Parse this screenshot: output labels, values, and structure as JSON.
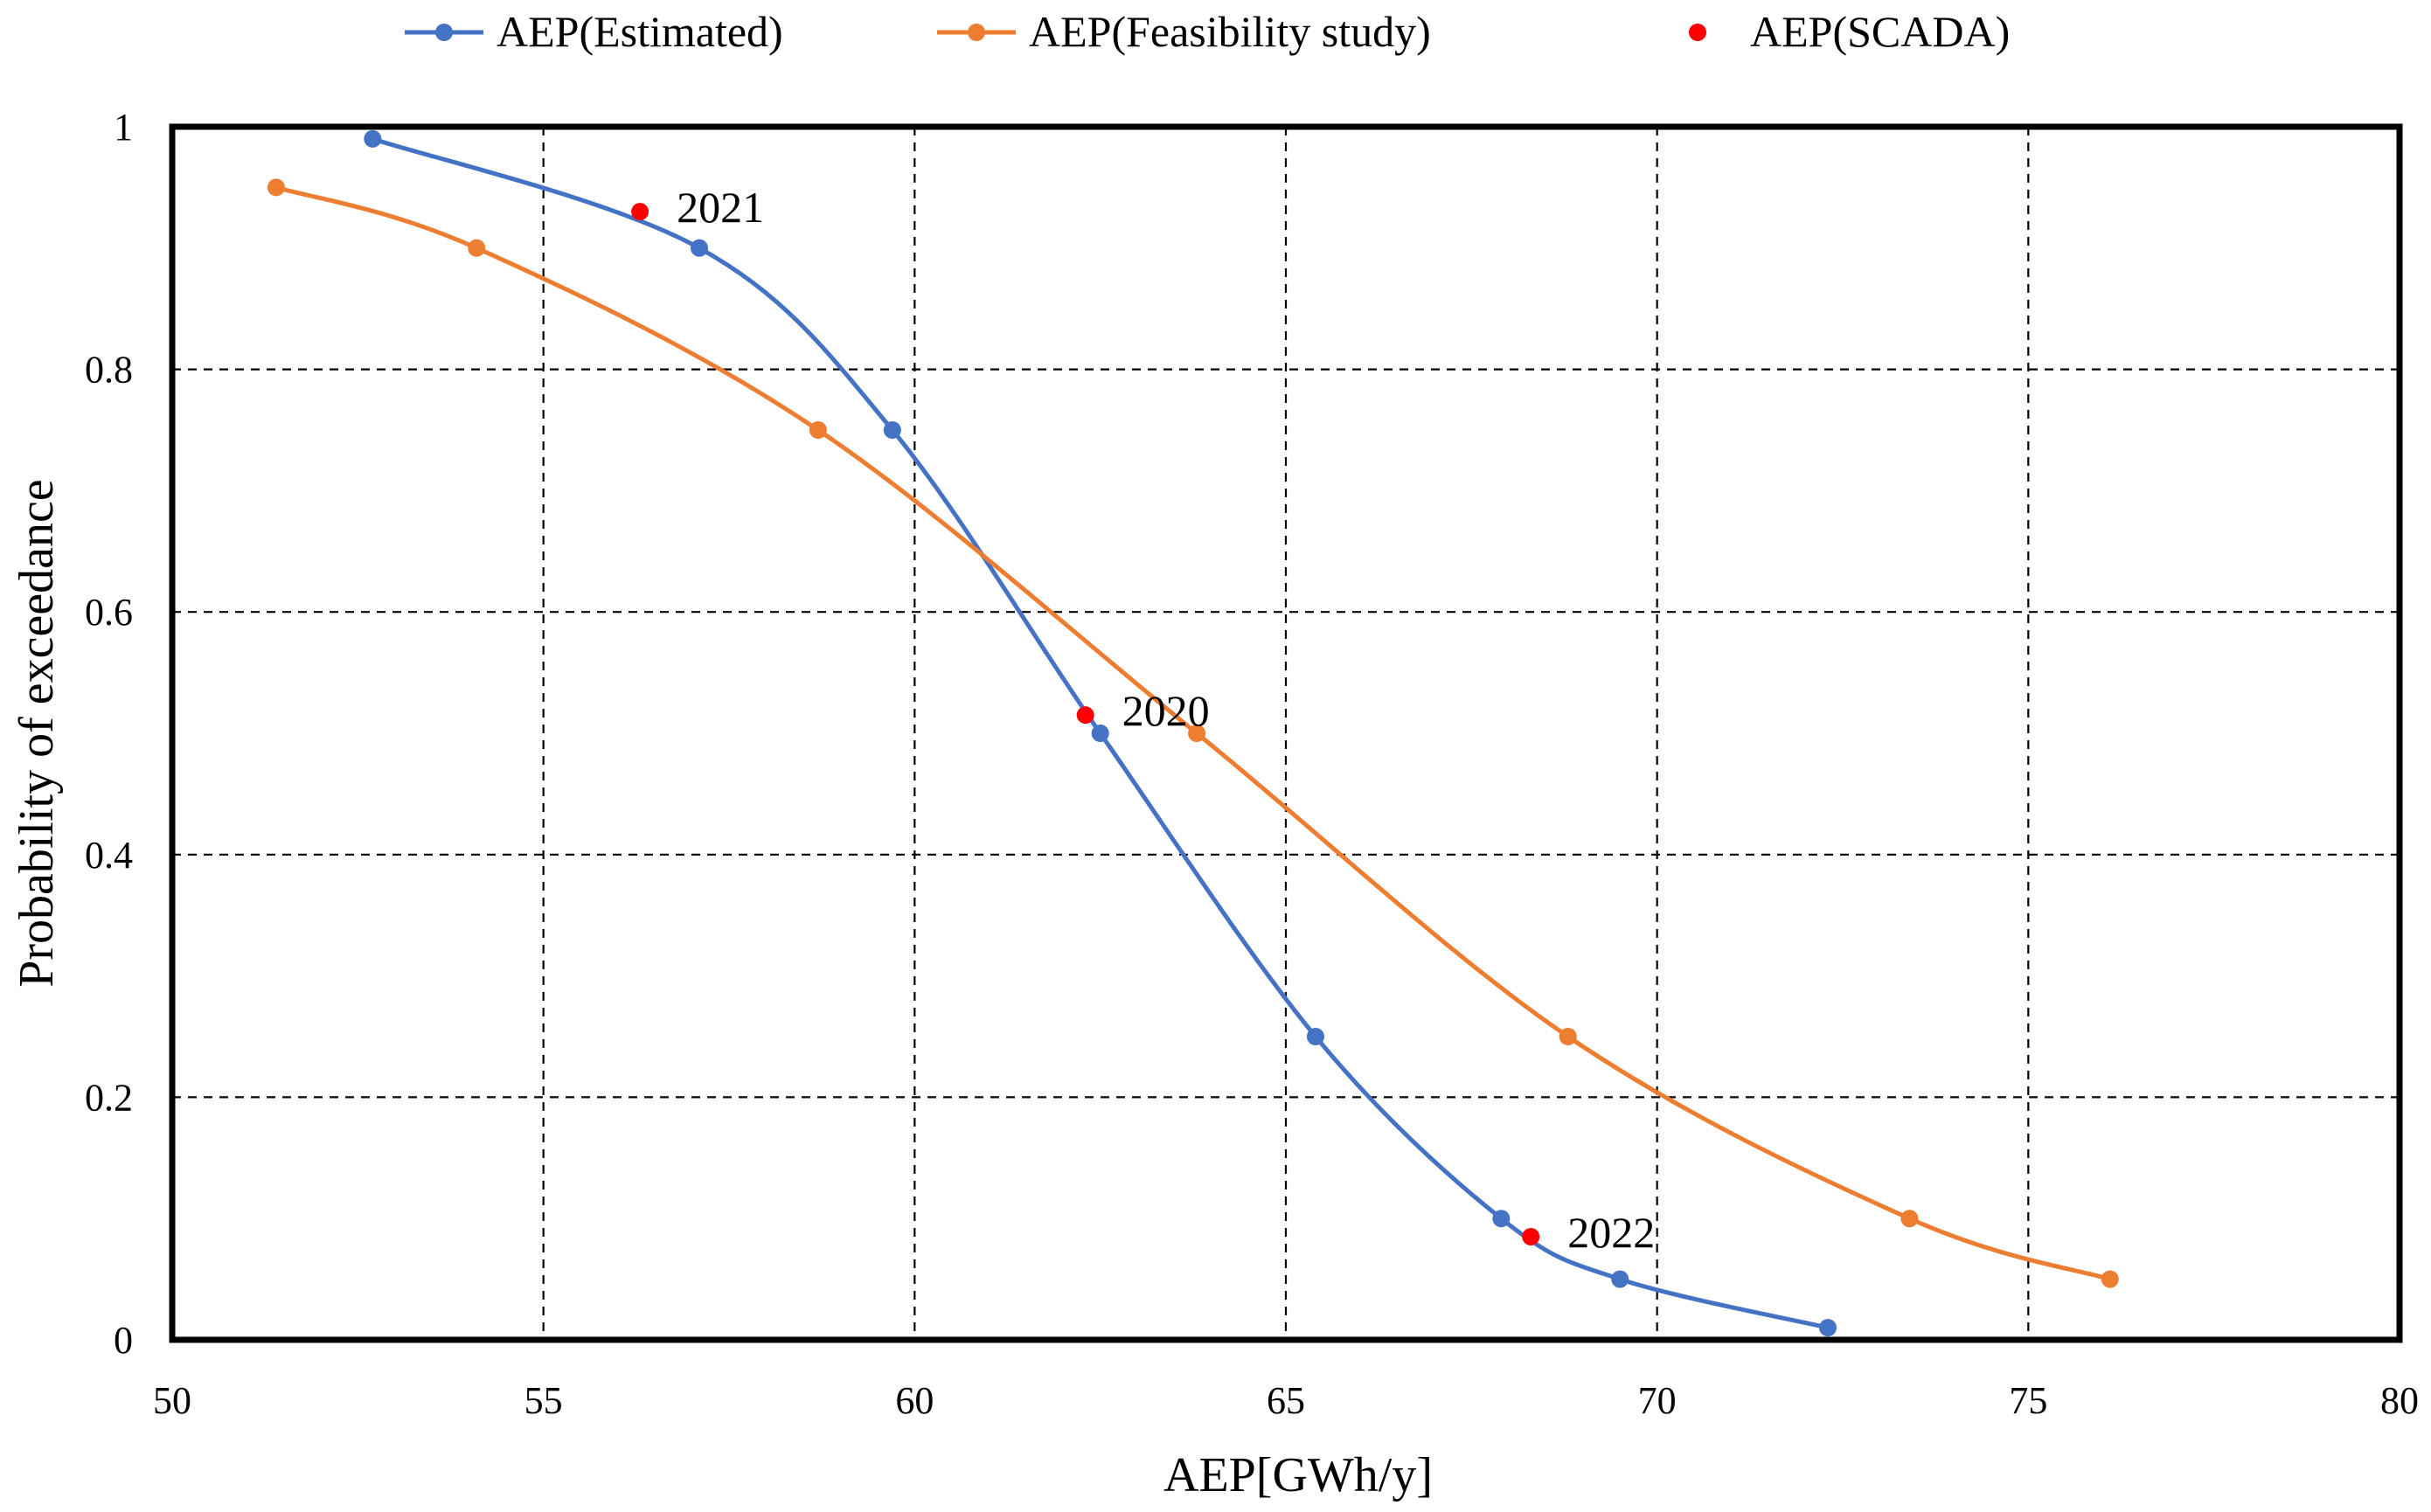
{
  "chart_data": {
    "type": "line",
    "title": "",
    "xlabel": "AEP[GWh/y]",
    "ylabel": "Probability of exceedance",
    "xlim": [
      50,
      80
    ],
    "ylim": [
      0,
      1
    ],
    "x_ticks": [
      50,
      55,
      60,
      65,
      70,
      75,
      80
    ],
    "y_ticks": [
      0,
      0.2,
      0.4,
      0.6,
      0.8,
      1
    ],
    "grid": true,
    "legend_position": "top",
    "series": [
      {
        "name": "AEP(Estimated)",
        "color": "#4472C4",
        "style": "smooth-line-markers",
        "points": [
          [
            52.7,
            0.99
          ],
          [
            57.1,
            0.9
          ],
          [
            59.7,
            0.75
          ],
          [
            62.5,
            0.5
          ],
          [
            65.4,
            0.25
          ],
          [
            67.9,
            0.1
          ],
          [
            69.5,
            0.05
          ],
          [
            72.3,
            0.01
          ]
        ]
      },
      {
        "name": "AEP(Feasibility study)",
        "color": "#ED7D31",
        "style": "smooth-line-markers",
        "points": [
          [
            51.4,
            0.95
          ],
          [
            54.1,
            0.9
          ],
          [
            58.7,
            0.75
          ],
          [
            63.8,
            0.5
          ],
          [
            68.8,
            0.25
          ],
          [
            73.4,
            0.1
          ],
          [
            76.1,
            0.05
          ]
        ]
      },
      {
        "name": "AEP(SCADA)",
        "color": "#FF0000",
        "style": "markers",
        "points": [
          [
            62.3,
            0.515
          ],
          [
            56.3,
            0.93
          ],
          [
            68.3,
            0.085
          ]
        ],
        "labels": [
          "2020",
          "2021",
          "2022"
        ]
      }
    ]
  }
}
